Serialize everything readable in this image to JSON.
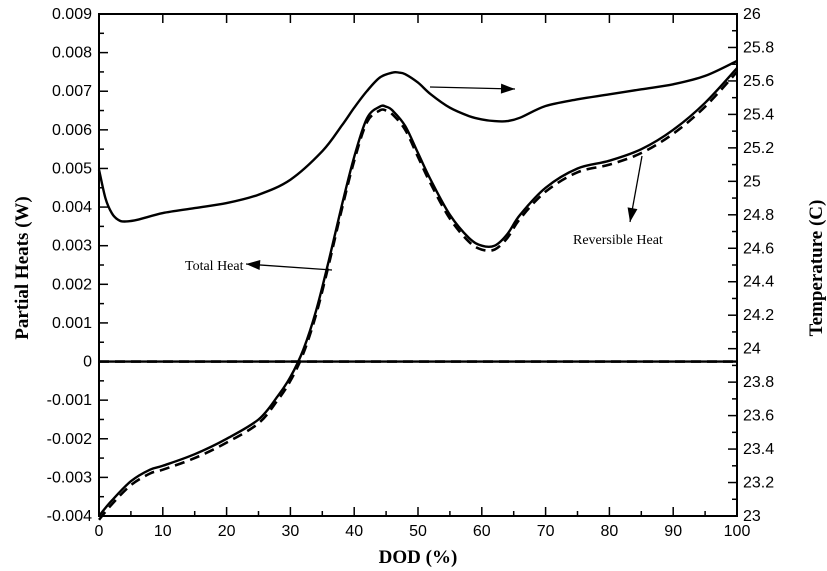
{
  "chart_data": {
    "type": "line",
    "xlabel": "DOD (%)",
    "ylabel_left": "Partial Heats (W)",
    "ylabel_right": "Temperature (C)",
    "xlim": [
      0,
      100
    ],
    "ylim_left": [
      -0.004,
      0.009
    ],
    "ylim_right": [
      23,
      26
    ],
    "x_ticks": [
      "0",
      "10",
      "20",
      "30",
      "40",
      "50",
      "60",
      "70",
      "80",
      "90",
      "100"
    ],
    "y_left_ticks": [
      "0.009",
      "0.008",
      "0.007",
      "0.006",
      "0.005",
      "0.004",
      "0.003",
      "0.002",
      "0.001",
      "0",
      "-0.001",
      "-0.002",
      "-0.003",
      "-0.004"
    ],
    "y_right_ticks": [
      "26",
      "25.8",
      "25.6",
      "25.4",
      "25.2",
      "25",
      "24.8",
      "24.6",
      "24.4",
      "24.2",
      "24",
      "23.8",
      "23.6",
      "23.4",
      "23.2",
      "23"
    ],
    "grid": false,
    "annotations": [
      {
        "id": "total_heat",
        "text": "Total Heat"
      },
      {
        "id": "reversible_heat",
        "text": "Reversible Heat"
      }
    ],
    "series": [
      {
        "id": "temperature",
        "axis": "right",
        "style": "solid",
        "x": [
          0,
          1,
          2,
          3,
          4,
          6,
          10,
          15,
          20,
          25,
          30,
          35,
          38,
          40,
          42,
          44,
          46,
          47,
          48,
          50,
          52,
          55,
          58,
          60,
          62,
          64,
          66,
          70,
          75,
          80,
          85,
          90,
          95,
          100
        ],
        "y": [
          25.07,
          24.9,
          24.81,
          24.77,
          24.76,
          24.77,
          24.81,
          24.84,
          24.87,
          24.92,
          25.01,
          25.18,
          25.33,
          25.44,
          25.54,
          25.62,
          25.65,
          25.65,
          25.64,
          25.59,
          25.52,
          25.44,
          25.39,
          25.37,
          25.36,
          25.36,
          25.38,
          25.45,
          25.49,
          25.52,
          25.55,
          25.58,
          25.63,
          25.72
        ]
      },
      {
        "id": "total_heat",
        "axis": "left",
        "style": "solid",
        "x": [
          0,
          2,
          5,
          8,
          10,
          15,
          20,
          25,
          28,
          30,
          32,
          34,
          36,
          38,
          40,
          42,
          44,
          45,
          46,
          48,
          50,
          52,
          55,
          58,
          60,
          62,
          64,
          66,
          70,
          75,
          80,
          85,
          90,
          95,
          100
        ],
        "y": [
          -0.004,
          -0.0036,
          -0.0031,
          -0.0028,
          -0.0027,
          -0.0024,
          -0.002,
          -0.0015,
          -0.0009,
          -0.0004,
          0.0003,
          0.0013,
          0.0026,
          0.004,
          0.0053,
          0.0063,
          0.0066,
          0.0066,
          0.0065,
          0.0061,
          0.0054,
          0.0047,
          0.0038,
          0.0032,
          0.003,
          0.003,
          0.0033,
          0.0038,
          0.0045,
          0.005,
          0.0052,
          0.0055,
          0.006,
          0.0067,
          0.0076
        ]
      },
      {
        "id": "reversible_heat",
        "axis": "left",
        "style": "dashed",
        "x": [
          0,
          2,
          5,
          8,
          10,
          15,
          20,
          25,
          28,
          30,
          32,
          34,
          36,
          38,
          40,
          42,
          44,
          45,
          46,
          48,
          50,
          52,
          55,
          58,
          60,
          62,
          64,
          66,
          70,
          75,
          80,
          85,
          90,
          95,
          100
        ],
        "y": [
          -0.0041,
          -0.0037,
          -0.0032,
          -0.0029,
          -0.0028,
          -0.0025,
          -0.0021,
          -0.0016,
          -0.001,
          -0.0005,
          0.0002,
          0.0012,
          0.0025,
          0.0039,
          0.0052,
          0.0062,
          0.0065,
          0.0065,
          0.0064,
          0.006,
          0.0053,
          0.0046,
          0.0037,
          0.0031,
          0.0029,
          0.0029,
          0.0032,
          0.0037,
          0.0044,
          0.0049,
          0.0051,
          0.0054,
          0.0059,
          0.0066,
          0.0075
        ]
      },
      {
        "id": "zero_line_solid",
        "axis": "left",
        "style": "solid",
        "x": [
          0,
          100
        ],
        "y": [
          0,
          0
        ]
      },
      {
        "id": "zero_line_dashed",
        "axis": "left",
        "style": "dashed",
        "x": [
          0,
          100
        ],
        "y": [
          0,
          0
        ]
      }
    ]
  }
}
